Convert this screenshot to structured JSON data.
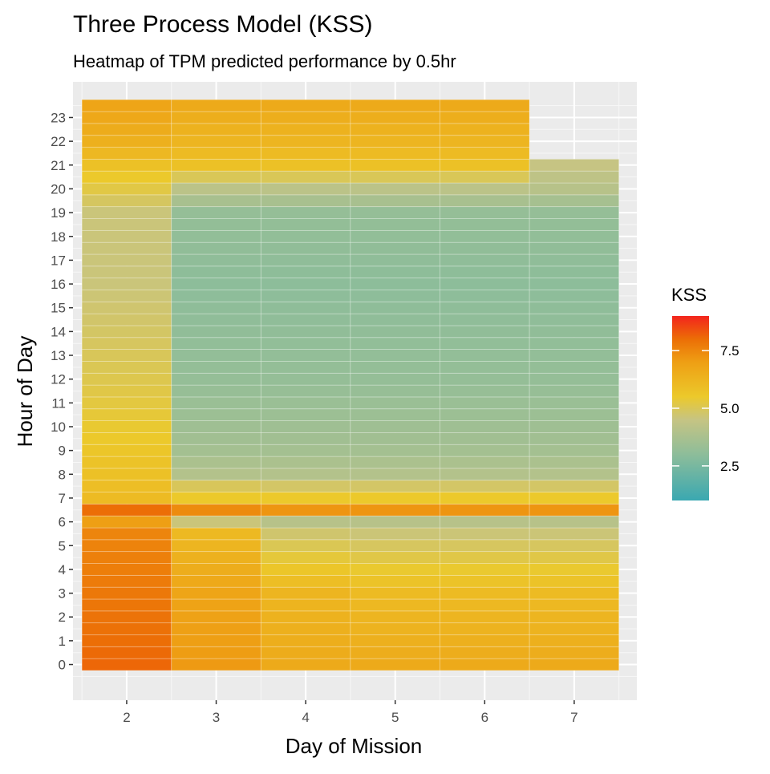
{
  "chart_data": {
    "type": "heatmap",
    "title": "Three Process Model (KSS)",
    "subtitle": "Heatmap of TPM predicted performance by 0.5hr",
    "xlabel": "Day of Mission",
    "ylabel": "Hour of Day",
    "x_ticks": [
      2,
      3,
      4,
      5,
      6,
      7
    ],
    "y_ticks": [
      0,
      1,
      2,
      3,
      4,
      5,
      6,
      7,
      8,
      9,
      10,
      11,
      12,
      13,
      14,
      15,
      16,
      17,
      18,
      19,
      20,
      21,
      22,
      23
    ],
    "xlim": [
      1.4,
      7.7
    ],
    "ylim": [
      -1.5,
      24.5
    ],
    "bin_hours": 0.5,
    "legend": {
      "title": "KSS",
      "position": "right",
      "breaks": [
        2.5,
        5.0,
        7.5
      ],
      "break_labels": [
        "2.5",
        "5.0",
        "7.5"
      ],
      "range": [
        1.0,
        9.0
      ],
      "colors": [
        {
          "value": 1.0,
          "color": "#3aa8b1"
        },
        {
          "value": 3.0,
          "color": "#8dbd9a"
        },
        {
          "value": 4.5,
          "color": "#c6c483"
        },
        {
          "value": 5.5,
          "color": "#ecc92b"
        },
        {
          "value": 7.0,
          "color": "#ee9f14"
        },
        {
          "value": 8.0,
          "color": "#ec6e06"
        },
        {
          "value": 9.0,
          "color": "#f3241d"
        }
      ]
    },
    "columns": [
      {
        "day": 2,
        "start": -0.25,
        "knots": [
          [
            0,
            8.1
          ],
          [
            5.75,
            7.5
          ],
          [
            6,
            7.0
          ],
          [
            6.5,
            8.0
          ],
          [
            6.75,
            7.2
          ],
          [
            7,
            6.0
          ],
          [
            9,
            5.6
          ],
          [
            12,
            5.1
          ],
          [
            16,
            4.6
          ],
          [
            19,
            4.6
          ],
          [
            20,
            5.2
          ],
          [
            21,
            5.8
          ],
          [
            22,
            6.4
          ],
          [
            23.5,
            6.8
          ]
        ]
      },
      {
        "day": 3,
        "start": -0.25,
        "knots": [
          [
            0,
            7.1
          ],
          [
            3,
            6.8
          ],
          [
            5.75,
            6.0
          ],
          [
            6,
            4.6
          ],
          [
            6.5,
            7.4
          ],
          [
            6.75,
            6.2
          ],
          [
            7,
            5.5
          ],
          [
            7.75,
            4.7
          ],
          [
            8,
            4.0
          ],
          [
            9,
            3.6
          ],
          [
            12,
            3.2
          ],
          [
            16,
            3.0
          ],
          [
            19,
            3.2
          ],
          [
            20,
            4.2
          ],
          [
            21,
            5.8
          ],
          [
            22,
            6.2
          ],
          [
            23.5,
            6.6
          ]
        ]
      },
      {
        "day": 4,
        "start": -0.25,
        "knots": [
          [
            0,
            6.6
          ],
          [
            3,
            6.2
          ],
          [
            5.75,
            4.6
          ],
          [
            6,
            4.1
          ],
          [
            6.5,
            7.2
          ],
          [
            6.75,
            6.0
          ],
          [
            7,
            5.5
          ],
          [
            7.75,
            4.5
          ],
          [
            8,
            4.0
          ],
          [
            9,
            3.6
          ],
          [
            12,
            3.2
          ],
          [
            16,
            3.0
          ],
          [
            19,
            3.2
          ],
          [
            20,
            4.2
          ],
          [
            21,
            5.8
          ],
          [
            22,
            6.2
          ],
          [
            23.5,
            6.6
          ]
        ]
      },
      {
        "day": 5,
        "start": -0.25,
        "knots": [
          [
            0,
            6.6
          ],
          [
            3,
            6.0
          ],
          [
            5.75,
            4.5
          ],
          [
            6,
            4.1
          ],
          [
            6.5,
            7.2
          ],
          [
            6.75,
            6.0
          ],
          [
            7,
            5.5
          ],
          [
            7.75,
            4.5
          ],
          [
            8,
            4.0
          ],
          [
            9,
            3.6
          ],
          [
            12,
            3.2
          ],
          [
            16,
            3.0
          ],
          [
            19,
            3.2
          ],
          [
            20,
            4.2
          ],
          [
            21,
            5.8
          ],
          [
            22,
            6.2
          ],
          [
            23.5,
            6.6
          ]
        ]
      },
      {
        "day": 6,
        "start": -0.25,
        "knots": [
          [
            0,
            6.6
          ],
          [
            3,
            6.0
          ],
          [
            5.75,
            4.5
          ],
          [
            6,
            4.1
          ],
          [
            6.5,
            7.2
          ],
          [
            6.75,
            6.0
          ],
          [
            7,
            5.5
          ],
          [
            7.75,
            4.5
          ],
          [
            8,
            4.0
          ],
          [
            9,
            3.6
          ],
          [
            12,
            3.2
          ],
          [
            16,
            3.0
          ],
          [
            19,
            3.2
          ],
          [
            20,
            4.2
          ],
          [
            21,
            5.8
          ],
          [
            22,
            6.2
          ],
          [
            23.5,
            6.6
          ]
        ]
      },
      {
        "day": 7,
        "start": -0.25,
        "knots": [
          [
            0,
            6.6
          ],
          [
            3,
            6.0
          ],
          [
            5.75,
            4.5
          ],
          [
            6,
            4.1
          ],
          [
            6.5,
            7.2
          ],
          [
            6.75,
            6.0
          ],
          [
            7,
            5.5
          ],
          [
            7.75,
            4.5
          ],
          [
            8,
            4.0
          ],
          [
            9,
            3.6
          ],
          [
            12,
            3.2
          ],
          [
            16,
            3.0
          ],
          [
            19,
            3.2
          ],
          [
            20,
            4.1
          ],
          [
            21.25,
            4.6
          ]
        ]
      }
    ],
    "column_ends": {
      "2": 23.75,
      "3": 23.75,
      "4": 23.75,
      "5": 23.75,
      "6": 23.75,
      "7": 21.25
    }
  }
}
